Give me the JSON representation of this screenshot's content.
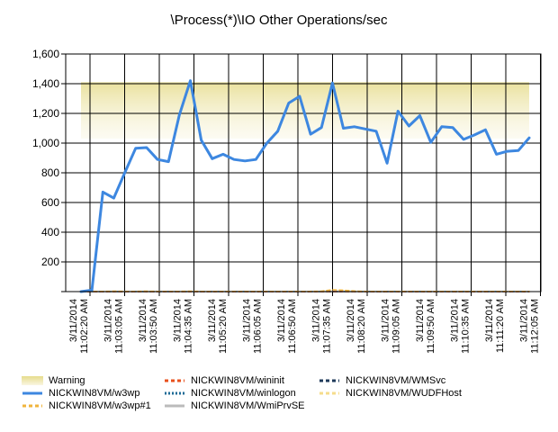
{
  "chart_data": {
    "type": "line",
    "title": "\\Process(*)\\IO Other Operations/sec",
    "xlabel": "",
    "ylabel": "",
    "ylim": [
      0,
      1600
    ],
    "yticks": [
      0,
      200,
      400,
      600,
      800,
      1000,
      1200,
      1400,
      1600
    ],
    "ytick_labels": [
      "",
      "200",
      "400",
      "600",
      "800",
      "1,000",
      "1,200",
      "1,400",
      "1,600"
    ],
    "grid": true,
    "legend_position": "bottom",
    "x_tick_labels": [
      [
        "3/11/2014",
        "11:02:20 AM"
      ],
      [
        "3/11/2014",
        "11:03:05 AM"
      ],
      [
        "3/11/2014",
        "11:03:50 AM"
      ],
      [
        "3/11/2014",
        "11:04:35 AM"
      ],
      [
        "3/11/2014",
        "11:05:20 AM"
      ],
      [
        "3/11/2014",
        "11:06:05 AM"
      ],
      [
        "3/11/2014",
        "11:06:50 AM"
      ],
      [
        "3/11/2014",
        "11:07:35 AM"
      ],
      [
        "3/11/2014",
        "11:08:20 AM"
      ],
      [
        "3/11/2014",
        "11:09:05 AM"
      ],
      [
        "3/11/2014",
        "11:09:50 AM"
      ],
      [
        "3/11/2014",
        "11:10:35 AM"
      ],
      [
        "3/11/2014",
        "11:11:20 AM"
      ],
      [
        "3/11/2014",
        "11:12:05 AM"
      ]
    ],
    "warning_band": {
      "name": "Warning",
      "from": 1030,
      "to": 1410,
      "color": "#e6dc8c"
    },
    "series": [
      {
        "name": "NICKWIN8VM/w3wp",
        "color": "#3d87e0",
        "style": "solid",
        "values": [
          0,
          10,
          670,
          630,
          800,
          965,
          970,
          890,
          875,
          1190,
          1420,
          1020,
          895,
          925,
          890,
          880,
          890,
          1000,
          1080,
          1270,
          1315,
          1060,
          1105,
          1405,
          1100,
          1110,
          1095,
          1080,
          865,
          1215,
          1115,
          1185,
          1005,
          1110,
          1105,
          1025,
          1055,
          1090,
          925,
          945,
          950,
          1035
        ]
      },
      {
        "name": "NICKWIN8VM/w3wp#1",
        "color": "#f0b43c",
        "style": "dashed",
        "values": [
          2,
          2,
          2,
          3,
          2,
          2,
          3,
          2,
          2,
          2,
          3,
          2,
          2,
          2,
          2,
          2,
          2,
          2,
          2,
          2,
          2,
          2,
          3,
          12,
          10,
          4,
          2,
          2,
          2,
          2,
          2,
          2,
          2,
          2,
          2,
          2,
          2,
          2,
          2,
          2,
          2,
          2
        ]
      },
      {
        "name": "NICKWIN8VM/wininit",
        "color": "#e8501c",
        "style": "dashed",
        "values": [
          0,
          0,
          0,
          0,
          0,
          0,
          0,
          0,
          0,
          0,
          0,
          0,
          0,
          0,
          0,
          0,
          0,
          0,
          0,
          0,
          0,
          0,
          0,
          0,
          0,
          0,
          0,
          0,
          0,
          0,
          0,
          0,
          0,
          0,
          0,
          0,
          0,
          0,
          0,
          0,
          0,
          0
        ]
      },
      {
        "name": "NICKWIN8VM/winlogon",
        "color": "#1c6a96",
        "style": "dotted",
        "values": [
          0,
          0,
          0,
          0,
          0,
          0,
          0,
          0,
          0,
          0,
          0,
          0,
          0,
          0,
          0,
          0,
          0,
          0,
          0,
          0,
          0,
          0,
          0,
          0,
          0,
          0,
          0,
          0,
          0,
          0,
          0,
          0,
          0,
          0,
          0,
          0,
          0,
          0,
          0,
          0,
          0,
          0
        ]
      },
      {
        "name": "NICKWIN8VM/WmiPrvSE",
        "color": "#bbbbbb",
        "style": "solid",
        "values": [
          0,
          0,
          0,
          0,
          0,
          0,
          0,
          0,
          0,
          0,
          0,
          0,
          0,
          0,
          0,
          0,
          0,
          0,
          0,
          0,
          0,
          0,
          0,
          0,
          0,
          0,
          0,
          0,
          0,
          0,
          0,
          0,
          0,
          0,
          0,
          0,
          0,
          0,
          0,
          0,
          0,
          0
        ]
      },
      {
        "name": "NICKWIN8VM/WMSvc",
        "color": "#1e3a5a",
        "style": "dashed",
        "values": [
          0,
          0,
          0,
          0,
          0,
          0,
          0,
          0,
          0,
          0,
          0,
          0,
          0,
          0,
          0,
          0,
          0,
          0,
          0,
          0,
          0,
          0,
          0,
          0,
          0,
          0,
          0,
          0,
          0,
          0,
          0,
          0,
          0,
          0,
          0,
          0,
          0,
          0,
          0,
          0,
          0,
          0
        ]
      },
      {
        "name": "NICKWIN8VM/WUDFHost",
        "color": "#f5dc8c",
        "style": "dashed",
        "values": [
          0,
          0,
          0,
          0,
          0,
          0,
          0,
          0,
          0,
          0,
          0,
          0,
          0,
          0,
          0,
          0,
          0,
          0,
          0,
          0,
          0,
          0,
          0,
          0,
          0,
          0,
          0,
          0,
          0,
          0,
          0,
          0,
          0,
          0,
          0,
          0,
          0,
          0,
          0,
          0,
          0,
          0
        ]
      }
    ]
  },
  "legend": {
    "items": [
      {
        "label": "Warning",
        "color": "#e6dc8c",
        "kind": "band"
      },
      {
        "label": "NICKWIN8VM/w3wp",
        "color": "#3d87e0",
        "kind": "solid"
      },
      {
        "label": "NICKWIN8VM/w3wp#1",
        "color": "#f0b43c",
        "kind": "dashed"
      },
      {
        "label": "NICKWIN8VM/wininit",
        "color": "#e8501c",
        "kind": "dashed"
      },
      {
        "label": "NICKWIN8VM/winlogon",
        "color": "#1c6a96",
        "kind": "dotted"
      },
      {
        "label": "NICKWIN8VM/WmiPrvSE",
        "color": "#bbbbbb",
        "kind": "solid"
      },
      {
        "label": "NICKWIN8VM/WMSvc",
        "color": "#1e3a5a",
        "kind": "dashed"
      },
      {
        "label": "NICKWIN8VM/WUDFHost",
        "color": "#f5dc8c",
        "kind": "dashed"
      }
    ]
  }
}
